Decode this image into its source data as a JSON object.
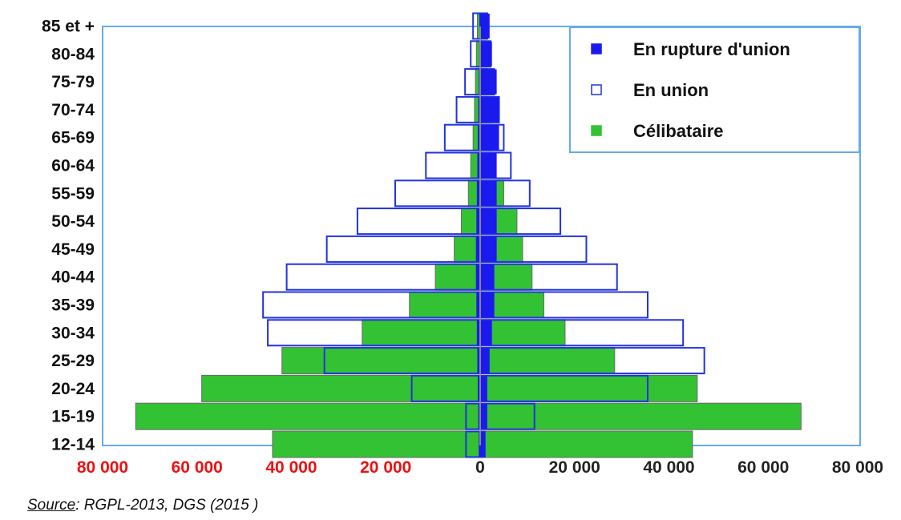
{
  "chart_data": {
    "type": "bar",
    "subtype": "population-pyramid",
    "categories": [
      "12-14",
      "15-19",
      "20-24",
      "25-29",
      "30-34",
      "35-39",
      "40-44",
      "45-49",
      "50-54",
      "55-59",
      "60-64",
      "65-69",
      "70-74",
      "75-79",
      "80-84",
      "85 et +"
    ],
    "left_side": {
      "series": [
        {
          "name": "Célibataire",
          "values": [
            44000,
            73000,
            59000,
            42000,
            25000,
            15000,
            9500,
            5500,
            4000,
            2500,
            2000,
            1500,
            1200,
            1000,
            800,
            600
          ]
        },
        {
          "name": "En union",
          "values": [
            3000,
            3000,
            14500,
            33000,
            45000,
            46000,
            41000,
            32500,
            26000,
            18000,
            11500,
            7500,
            5000,
            3200,
            2000,
            1500
          ]
        },
        {
          "name": "En rupture d'union",
          "values": [
            300,
            400,
            500,
            600,
            700,
            800,
            900,
            900,
            800,
            700,
            600,
            500,
            400,
            300,
            200,
            100
          ]
        }
      ]
    },
    "right_side": {
      "series": [
        {
          "name": "Célibataire",
          "values": [
            45000,
            68000,
            46000,
            28500,
            18000,
            13500,
            11000,
            9000,
            7800,
            5000,
            3000,
            2500,
            2000,
            1500,
            1200,
            1000
          ]
        },
        {
          "name": "En union",
          "values": [
            1000,
            11500,
            35500,
            47500,
            43000,
            35500,
            29000,
            22500,
            17000,
            10500,
            6500,
            5000,
            4000,
            3000,
            2200,
            1500
          ]
        },
        {
          "name": "En rupture d'union",
          "values": [
            1000,
            1500,
            1500,
            2000,
            2500,
            3000,
            3000,
            3500,
            3500,
            3500,
            3500,
            4000,
            4000,
            3500,
            2500,
            2000
          ]
        }
      ]
    },
    "x_ticks_left": [
      "80 000",
      "60 000",
      "40 000",
      "20 000"
    ],
    "x_ticks_right": [
      "0",
      "20 000",
      "40 000",
      "60 000",
      "80 000"
    ],
    "xlim": [
      -80000,
      80000
    ],
    "legend": {
      "position": "top-right",
      "entries": [
        "En rupture d'union",
        "En union",
        "Célibataire"
      ]
    },
    "colors": {
      "celibataire": "#33c233",
      "union_stroke": "#2233dd",
      "union_fill": "#ffffff",
      "rupture": "#1a1aee",
      "left_tick_color": "#ee1111",
      "right_tick_color": "#222222",
      "plot_border": "#66aaee"
    },
    "grid": false
  },
  "source": {
    "label": "Source",
    "text": ": RGPL-2013, DGS (2015 )"
  }
}
